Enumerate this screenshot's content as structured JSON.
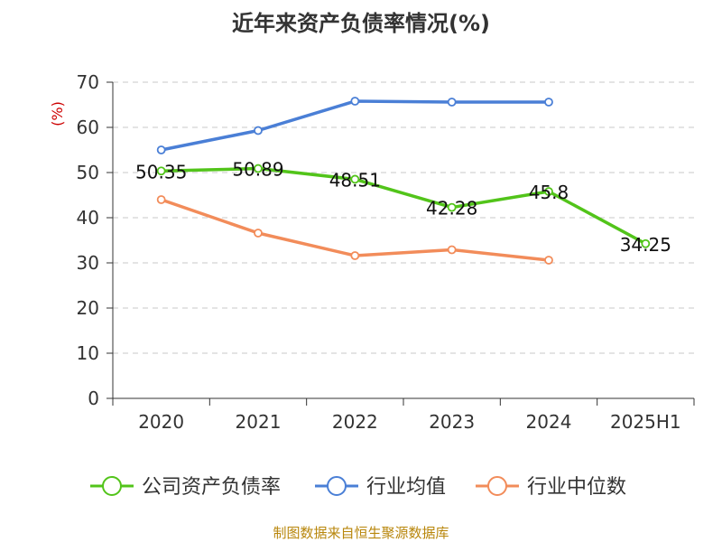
{
  "chart_data": {
    "type": "line",
    "title": "近年来资产负债率情况(%)",
    "ylabel": "(%)",
    "xlabel": "",
    "ylim": [
      0,
      70
    ],
    "yticks": [
      0,
      10,
      20,
      30,
      40,
      50,
      60,
      70
    ],
    "categories": [
      "2020",
      "2021",
      "2022",
      "2023",
      "2024",
      "2025H1"
    ],
    "grid": true,
    "legend_position": "bottom",
    "series": [
      {
        "name": "公司资产负债率",
        "color": "#52c41a",
        "values": [
          50.35,
          50.89,
          48.51,
          42.28,
          45.8,
          34.25
        ],
        "labels": [
          "50.35",
          "50.89",
          "48.51",
          "42.28",
          "45.8",
          "34.25"
        ]
      },
      {
        "name": "行业均值",
        "color": "#4a7fd6",
        "values": [
          55.0,
          59.3,
          65.8,
          65.6,
          65.6,
          null
        ]
      },
      {
        "name": "行业中位数",
        "color": "#f28c5a",
        "values": [
          44.0,
          36.6,
          31.6,
          32.9,
          30.6,
          null
        ]
      }
    ]
  },
  "source": "制图数据来自恒生聚源数据库"
}
